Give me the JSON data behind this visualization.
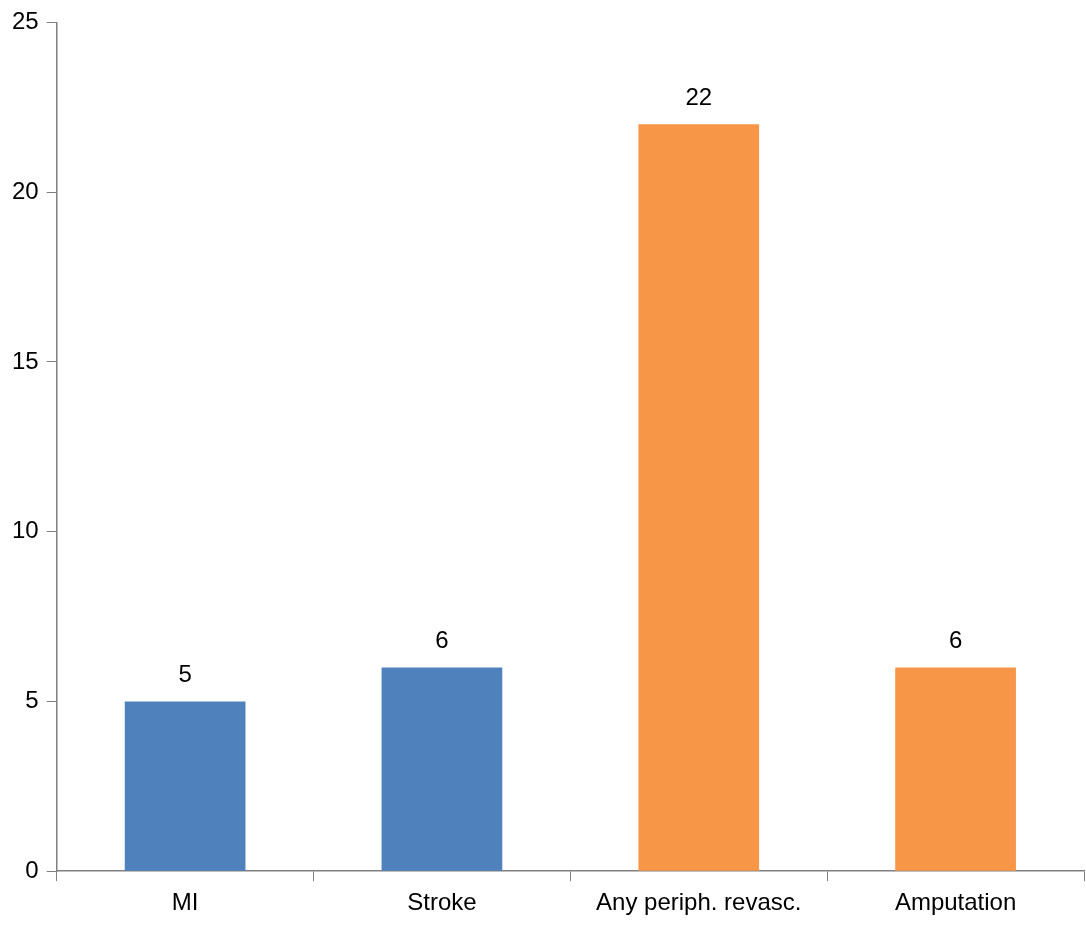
{
  "chart_data": {
    "type": "bar",
    "categories": [
      "MI",
      "Stroke",
      "Any periph. revasc.",
      "Amputation"
    ],
    "values": [
      5,
      6,
      22,
      6
    ],
    "colors": [
      "#4f81bd",
      "#4f81bd",
      "#f79646",
      "#f79646"
    ],
    "ylim": [
      0,
      25
    ],
    "yticks": [
      0,
      5,
      10,
      15,
      20,
      25
    ],
    "data_labels": true,
    "grid": false,
    "legend": false
  }
}
